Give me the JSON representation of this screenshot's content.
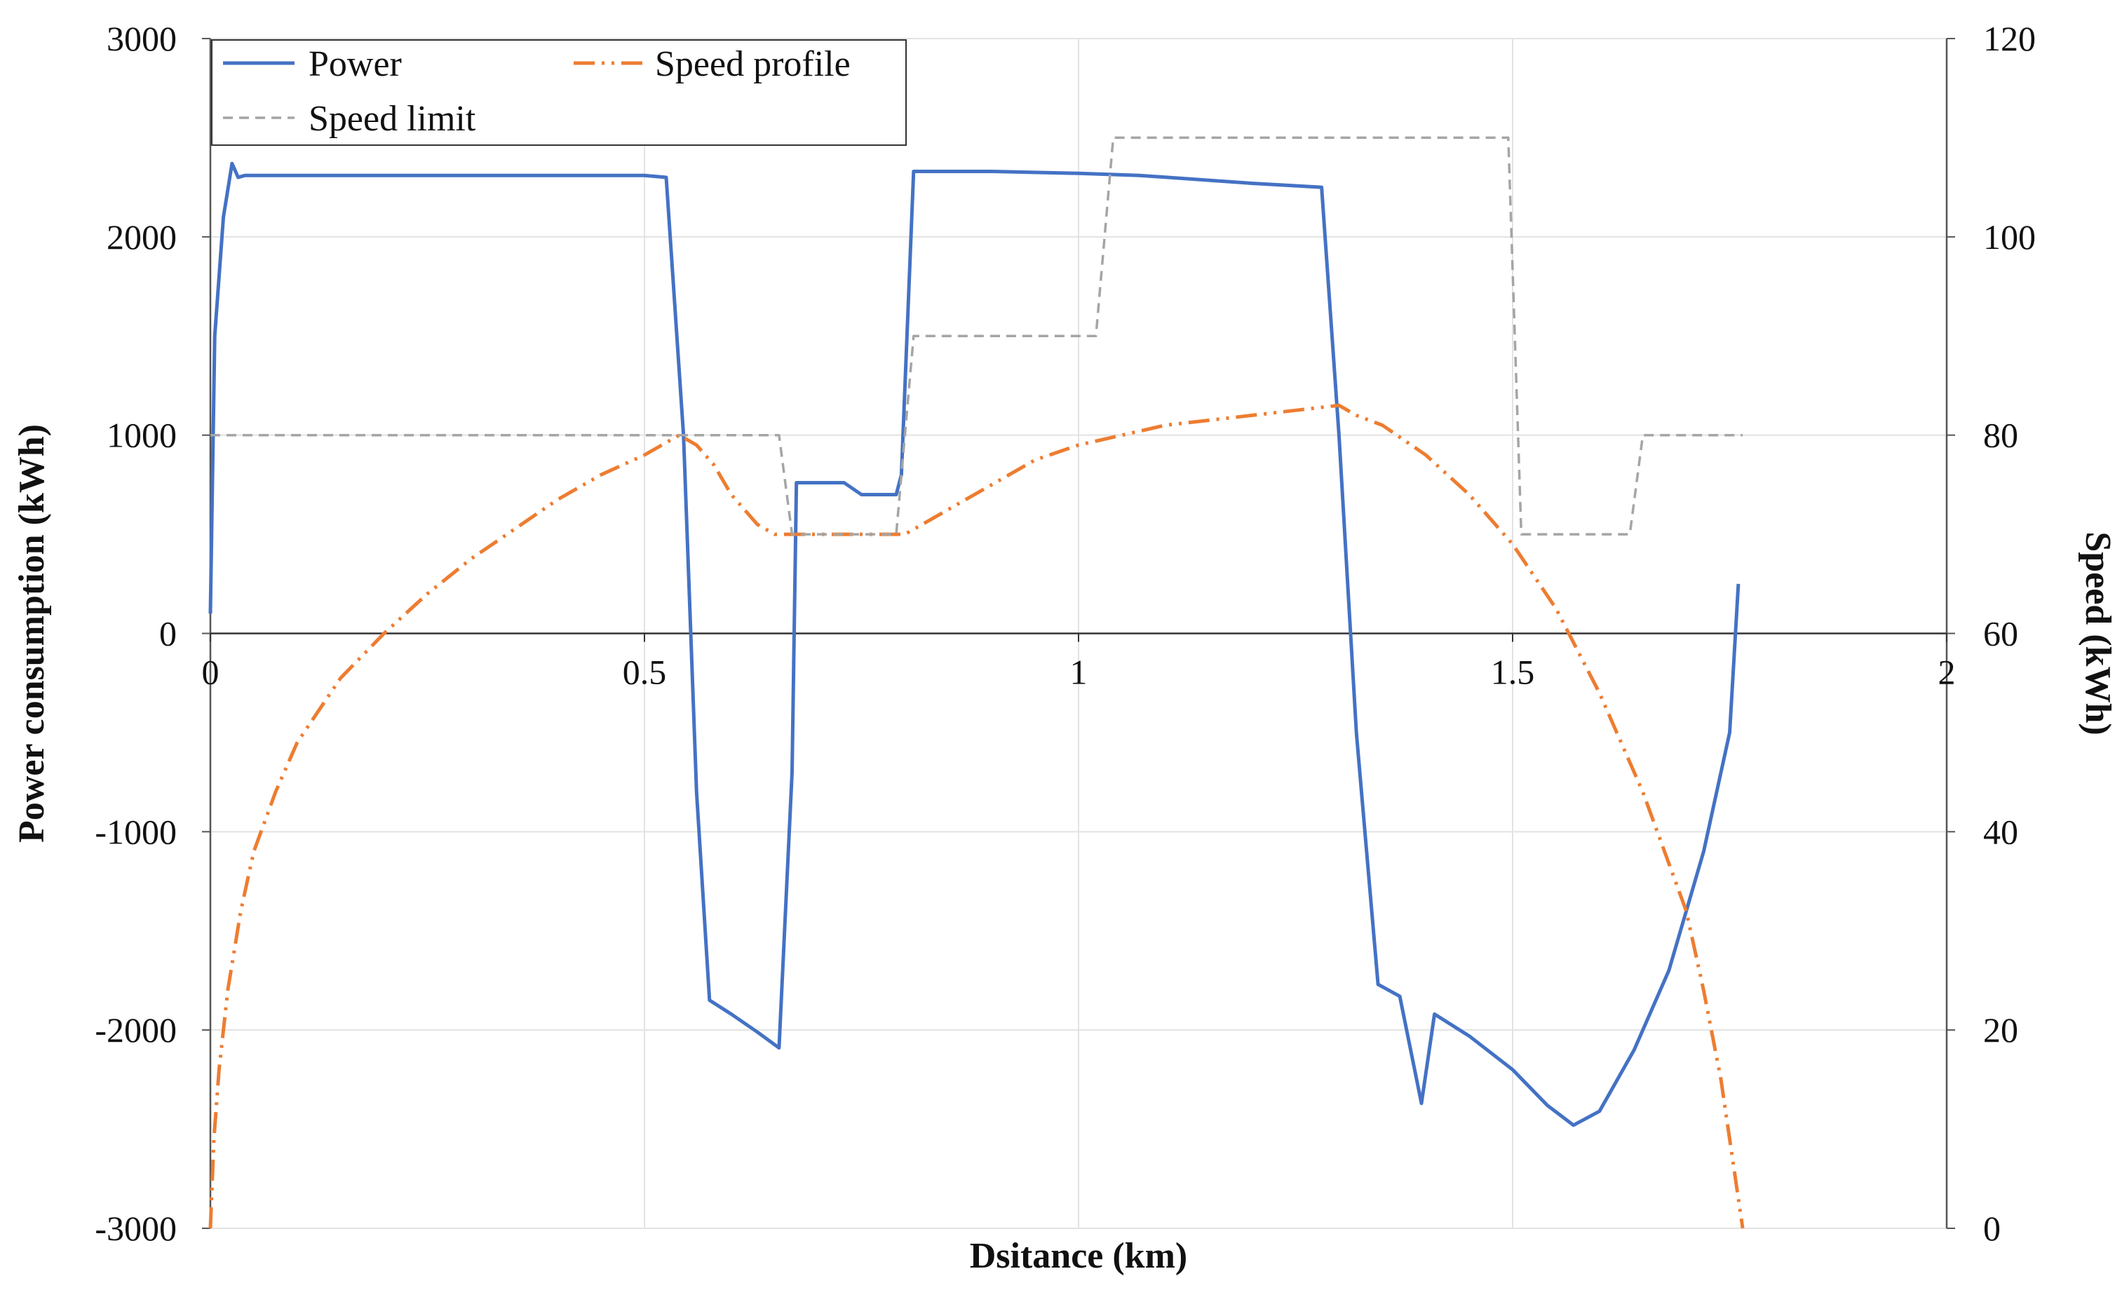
{
  "chart_data": {
    "type": "line",
    "xlabel": "Dsitance (km)",
    "ylabel_left": "Power consumption (kWh)",
    "ylabel_right": "Speed (kWh)",
    "xlim": [
      0,
      2
    ],
    "ylim_left": [
      -3000,
      3000
    ],
    "ylim_right": [
      0,
      120
    ],
    "x_ticks": [
      0,
      0.5,
      1,
      1.5,
      2
    ],
    "x_tick_labels": [
      "0",
      "0.5",
      "1",
      "1.5",
      "2"
    ],
    "y_left_ticks": [
      3000,
      2000,
      1000,
      0,
      -1000,
      -2000,
      -3000
    ],
    "y_right_ticks": [
      120,
      100,
      80,
      60,
      40,
      20,
      0
    ],
    "grid": true,
    "legend_position": "top-left",
    "series": [
      {
        "name": "Power",
        "axis": "left",
        "color": "#4472c4",
        "style": "solid",
        "x": [
          0,
          0.005,
          0.015,
          0.025,
          0.032,
          0.04,
          0.1,
          0.3,
          0.5,
          0.525,
          0.545,
          0.56,
          0.575,
          0.6,
          0.63,
          0.655,
          0.67,
          0.675,
          0.7,
          0.73,
          0.75,
          0.79,
          0.796,
          0.81,
          0.85,
          0.9,
          1.0,
          1.07,
          1.2,
          1.28,
          1.3,
          1.32,
          1.345,
          1.37,
          1.395,
          1.41,
          1.45,
          1.5,
          1.54,
          1.57,
          1.6,
          1.64,
          1.68,
          1.72,
          1.75,
          1.76
        ],
        "y": [
          100,
          1500,
          2100,
          2370,
          2300,
          2310,
          2310,
          2310,
          2310,
          2300,
          1000,
          -800,
          -1850,
          -1920,
          -2010,
          -2090,
          -700,
          760,
          760,
          760,
          700,
          700,
          800,
          2330,
          2330,
          2330,
          2320,
          2310,
          2270,
          2250,
          1000,
          -500,
          -1770,
          -1830,
          -2370,
          -1920,
          -2030,
          -2200,
          -2380,
          -2480,
          -2410,
          -2100,
          -1700,
          -1100,
          -500,
          250
        ]
      },
      {
        "name": "Speed profile",
        "axis": "right",
        "color": "#ed7d31",
        "style": "dashdotdot",
        "x": [
          0,
          0.004,
          0.01,
          0.02,
          0.035,
          0.05,
          0.075,
          0.1,
          0.15,
          0.2,
          0.25,
          0.3,
          0.35,
          0.4,
          0.45,
          0.5,
          0.54,
          0.56,
          0.58,
          0.6,
          0.63,
          0.65,
          0.7,
          0.75,
          0.8,
          0.82,
          0.85,
          0.9,
          0.95,
          1.0,
          1.05,
          1.1,
          1.15,
          1.2,
          1.25,
          1.3,
          1.32,
          1.35,
          1.4,
          1.45,
          1.5,
          1.55,
          1.6,
          1.65,
          1.7,
          1.72,
          1.74,
          1.755,
          1.765
        ],
        "y": [
          0,
          9,
          16,
          24,
          32,
          38,
          44,
          49,
          55.5,
          60,
          64,
          67.5,
          70.5,
          73.5,
          76,
          78,
          80,
          79,
          77,
          74,
          71,
          70,
          70,
          70,
          70,
          71,
          72.5,
          75,
          77.5,
          79,
          80,
          81,
          81.5,
          82,
          82.5,
          83,
          82,
          81,
          78,
          74,
          69,
          62.5,
          54,
          44,
          32,
          24,
          15,
          6,
          0
        ]
      },
      {
        "name": "Speed limit",
        "axis": "right",
        "color": "#a5a5a5",
        "style": "dashed",
        "x": [
          0,
          0.655,
          0.67,
          0.79,
          0.8,
          0.81,
          1.02,
          1.04,
          1.495,
          1.51,
          1.635,
          1.65,
          1.765
        ],
        "y": [
          80,
          80,
          70,
          70,
          80,
          90,
          90,
          110,
          110,
          70,
          70,
          80,
          80
        ]
      }
    ]
  }
}
